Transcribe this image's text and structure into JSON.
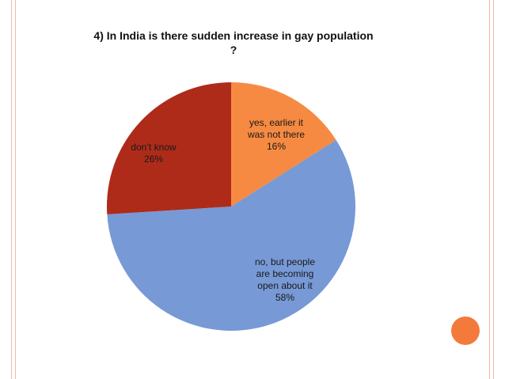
{
  "slide": {
    "accent_color": "#f47a3c",
    "border_color": "#f2b8a2"
  },
  "chart_data": {
    "type": "pie",
    "title_line1": "4)  In India is there sudden increase in gay population",
    "title_line2": "?",
    "slices": [
      {
        "label_lines": [
          "yes, earlier it",
          "was not there",
          "16%"
        ],
        "value": 16,
        "color": "#f68a42",
        "text_color": "#1a1a1a"
      },
      {
        "label_lines": [
          "no, but people",
          "are becoming",
          "open about it",
          "58%"
        ],
        "value": 58,
        "color": "#7799d6",
        "text_color": "#ffffff"
      },
      {
        "label_lines": [
          "don’t know",
          "26%"
        ],
        "value": 26,
        "color": "#ae2b1a",
        "text_color": "#1a1a1a"
      }
    ]
  }
}
